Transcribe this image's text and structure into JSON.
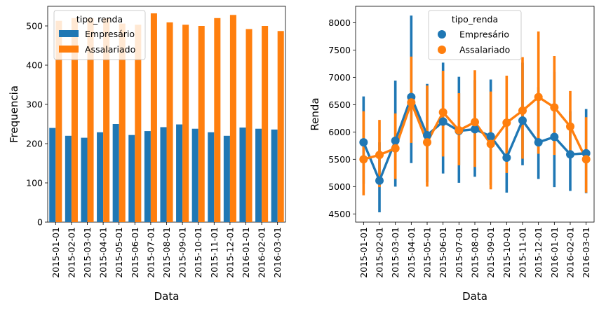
{
  "colors": {
    "empresario": "#1f77b4",
    "assalariado": "#ff7f0e"
  },
  "chart_data": [
    {
      "type": "bar",
      "xlabel": "Data",
      "ylabel": "Frequencia",
      "ylim": [
        0,
        550
      ],
      "yticks": [
        0,
        100,
        200,
        300,
        400,
        500
      ],
      "grid": false,
      "legend": {
        "title": "tipo_renda",
        "placement": "upper-left"
      },
      "categories": [
        "2015-01-01",
        "2015-02-01",
        "2015-03-01",
        "2015-04-01",
        "2015-05-01",
        "2015-06-01",
        "2015-07-01",
        "2015-08-01",
        "2015-09-01",
        "2015-10-01",
        "2015-11-01",
        "2015-12-01",
        "2016-01-01",
        "2016-02-01",
        "2016-03-01"
      ],
      "series": [
        {
          "name": "Empresário",
          "values": [
            240,
            220,
            215,
            229,
            250,
            222,
            232,
            242,
            249,
            238,
            229,
            220,
            241,
            238,
            236
          ]
        },
        {
          "name": "Assalariado",
          "values": [
            513,
            520,
            520,
            519,
            506,
            503,
            532,
            509,
            503,
            500,
            520,
            528,
            492,
            500,
            487
          ]
        }
      ]
    },
    {
      "type": "line",
      "subtype": "pointplot-with-confidence-intervals",
      "xlabel": "Data",
      "ylabel": "Renda",
      "ylim": [
        4350,
        8300
      ],
      "yticks": [
        4500,
        5000,
        5500,
        6000,
        6500,
        7000,
        7500,
        8000
      ],
      "grid": false,
      "legend": {
        "title": "tipo_renda",
        "placement": "upper-center"
      },
      "categories": [
        "2015-01-01",
        "2015-02-01",
        "2015-03-01",
        "2015-04-01",
        "2015-05-01",
        "2015-06-01",
        "2015-07-01",
        "2015-08-01",
        "2015-09-01",
        "2015-10-01",
        "2015-11-01",
        "2015-12-01",
        "2016-01-01",
        "2016-02-01",
        "2016-03-01"
      ],
      "series": [
        {
          "name": "Empresário",
          "values": [
            5810,
            5110,
            5840,
            6640,
            5940,
            6190,
            6020,
            6050,
            5920,
            5530,
            6210,
            5810,
            5910,
            5590,
            5610
          ],
          "ci_low": [
            5050,
            4530,
            5000,
            5430,
            5080,
            5240,
            5070,
            5180,
            5030,
            4890,
            5390,
            5140,
            4990,
            4920,
            4880
          ],
          "ci_high": [
            6650,
            5810,
            6940,
            8130,
            6880,
            7270,
            7010,
            6950,
            6960,
            6260,
            7270,
            6820,
            7100,
            6380,
            6420
          ]
        },
        {
          "name": "Assalariado",
          "values": [
            5500,
            5580,
            5700,
            6540,
            5810,
            6360,
            6030,
            6180,
            5780,
            6170,
            6390,
            6640,
            6450,
            6100,
            5500
          ],
          "ci_low": [
            4840,
            4990,
            5140,
            5800,
            5000,
            5550,
            5390,
            5360,
            4950,
            5250,
            5510,
            5600,
            5580,
            5540,
            4890
          ],
          "ci_high": [
            6380,
            6220,
            6340,
            7380,
            6850,
            7120,
            6710,
            7130,
            6740,
            7030,
            7370,
            7840,
            7390,
            6750,
            6270
          ]
        }
      ]
    }
  ]
}
